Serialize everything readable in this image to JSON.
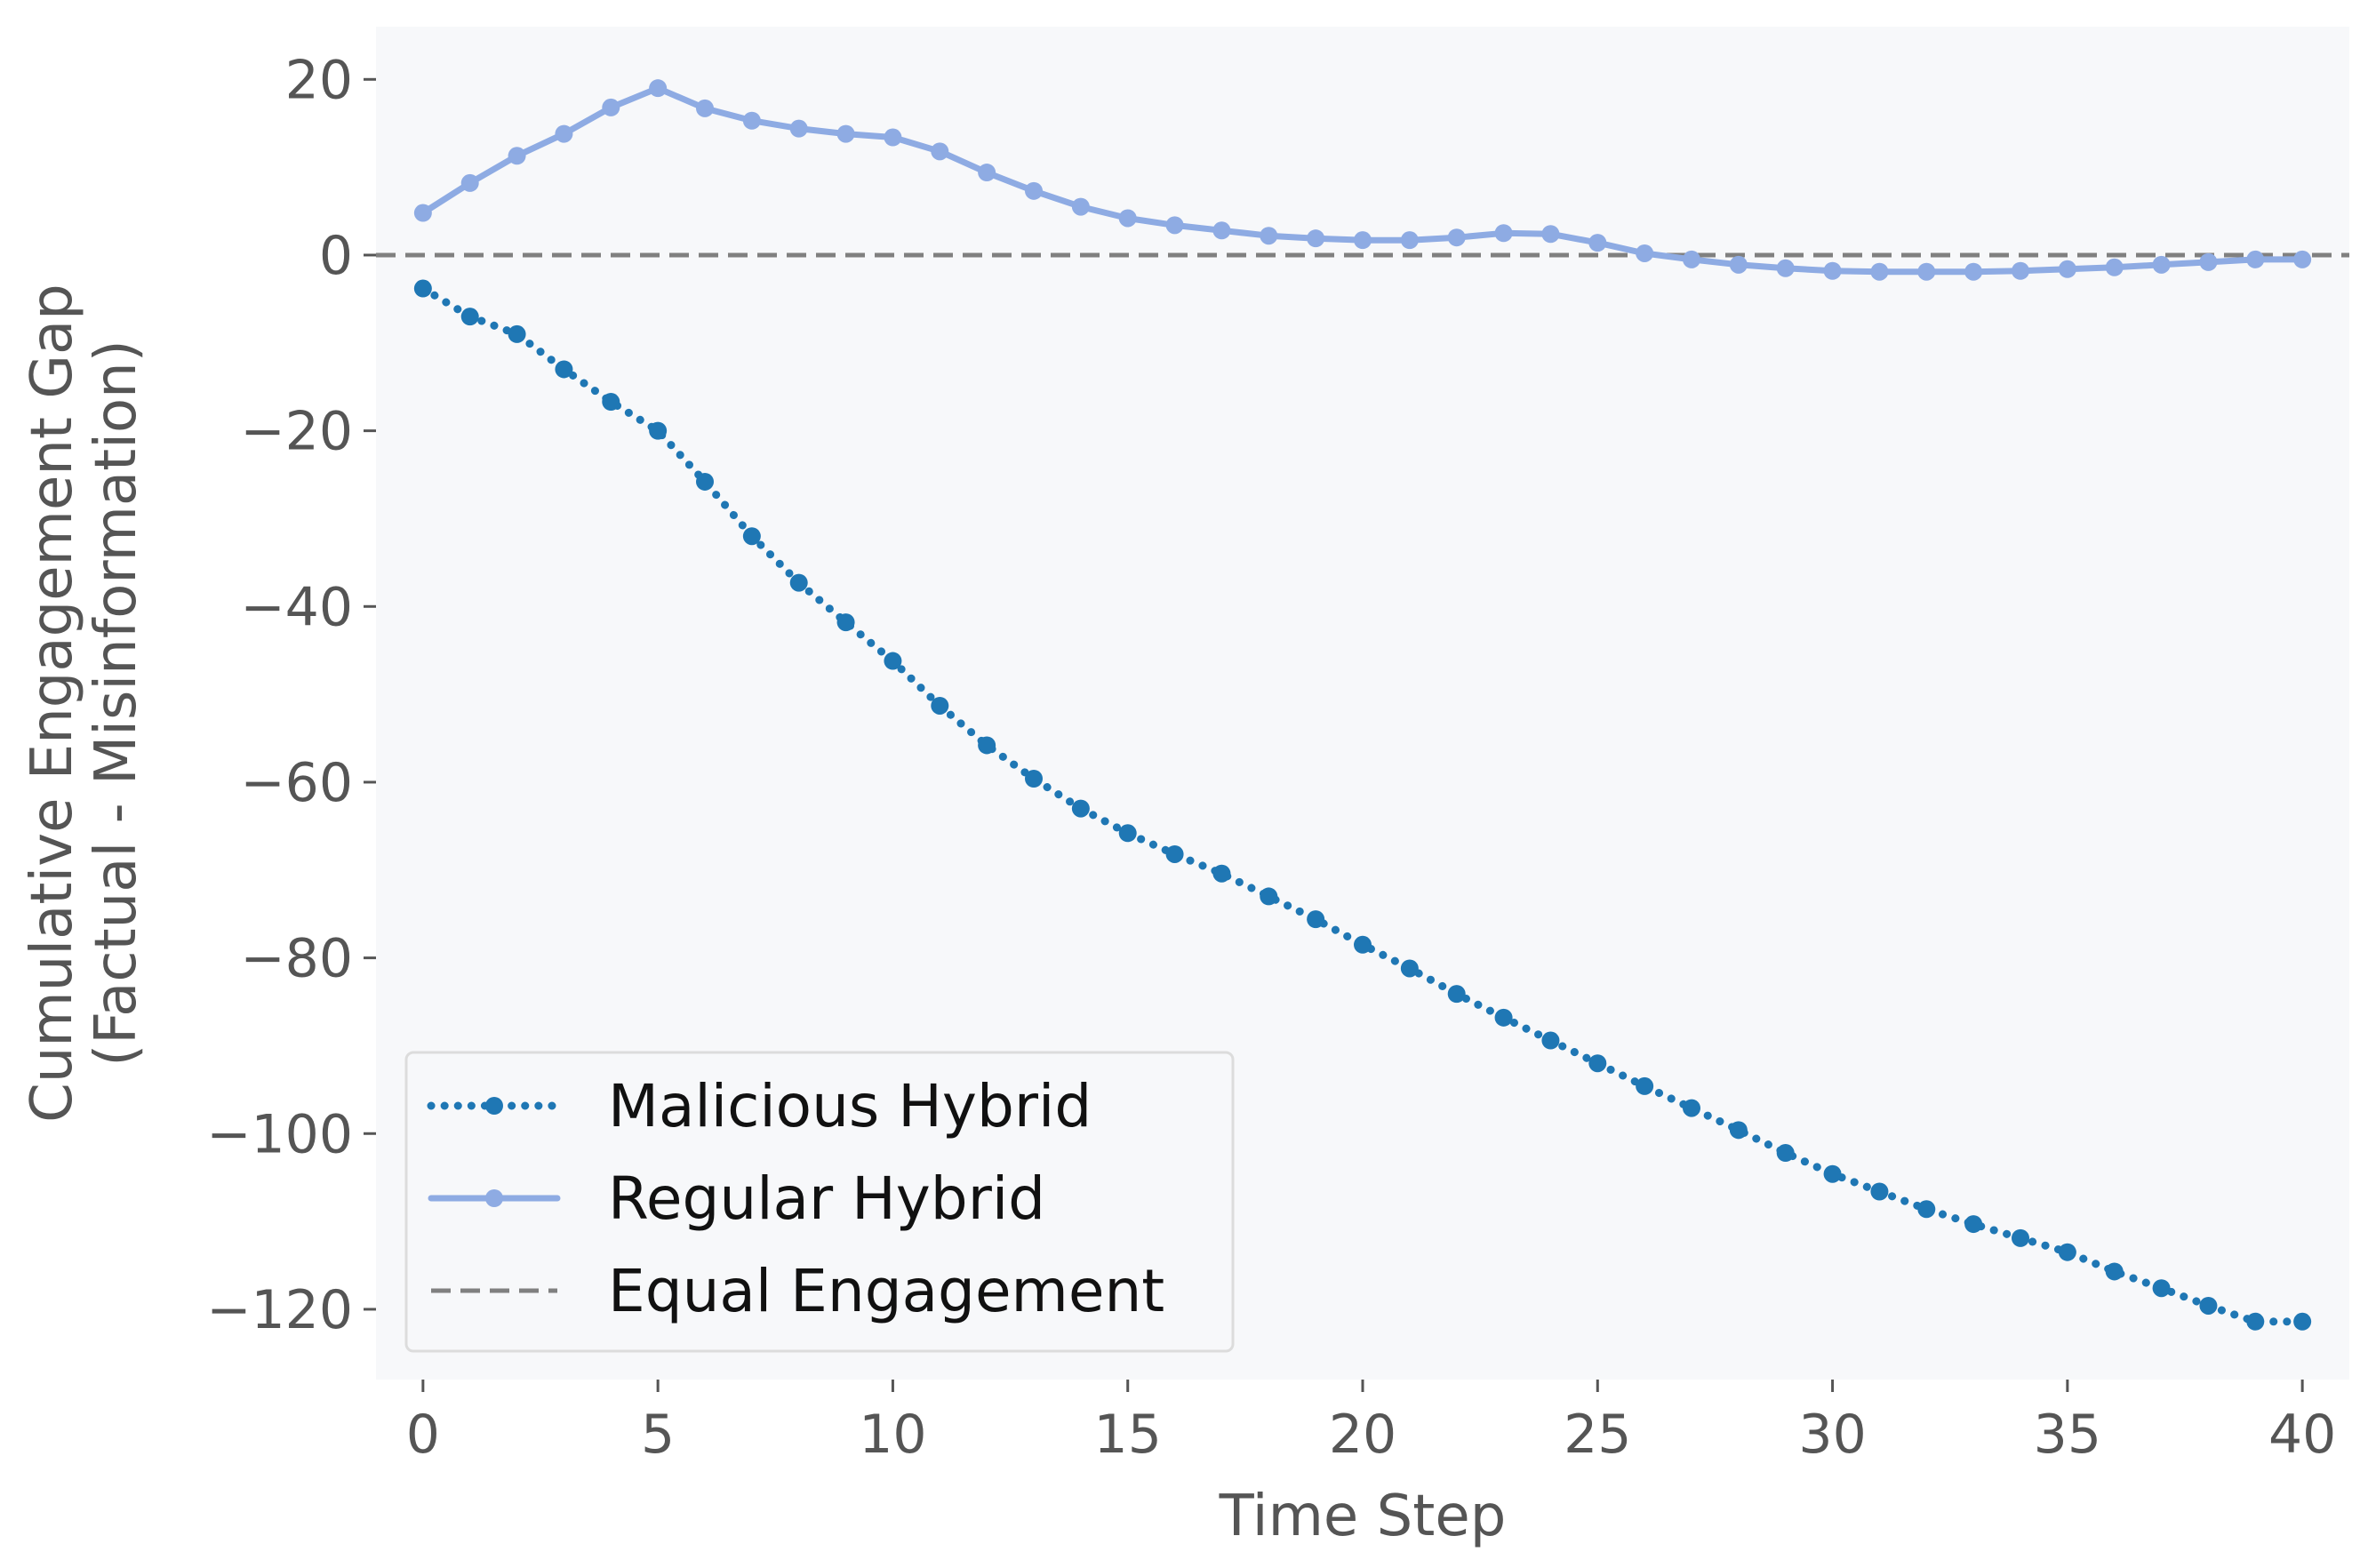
{
  "chart_data": {
    "type": "line",
    "title": "",
    "xlabel": "Time Step",
    "ylabel_line1": "Cumulative Engagement Gap",
    "ylabel_line2": "(Factual - Misinformation)",
    "xlim": [
      -1,
      41
    ],
    "ylim": [
      -128,
      26
    ],
    "x_ticks": [
      0,
      5,
      10,
      15,
      20,
      25,
      30,
      35,
      40
    ],
    "x_tick_labels": [
      "0",
      "5",
      "10",
      "15",
      "20",
      "25",
      "30",
      "35",
      "40"
    ],
    "y_ticks": [
      20,
      0,
      -20,
      -40,
      -60,
      -80,
      -100,
      -120
    ],
    "y_tick_labels": [
      "20",
      "0",
      "−20",
      "−40",
      "−60",
      "−80",
      "−100",
      "−120"
    ],
    "grid": false,
    "legend_position": "lower-left",
    "background_color": "#f7f8fa",
    "x": [
      0,
      1,
      2,
      3,
      4,
      5,
      6,
      7,
      8,
      9,
      10,
      11,
      12,
      13,
      14,
      15,
      16,
      17,
      18,
      19,
      20,
      21,
      22,
      23,
      24,
      25,
      26,
      27,
      28,
      29,
      30,
      31,
      32,
      33,
      34,
      35,
      36,
      37,
      38,
      39,
      40
    ],
    "series": [
      {
        "name": "Malicious Hybrid",
        "style": "dotted",
        "color": "#1f77b4",
        "values": [
          -3.8,
          -7,
          -9,
          -13,
          -16.7,
          -20,
          -25.8,
          -32,
          -37.3,
          -41.8,
          -46.2,
          -51.3,
          -55.8,
          -59.6,
          -63,
          -65.8,
          -68.2,
          -70.4,
          -73,
          -75.6,
          -78.5,
          -81.2,
          -84.1,
          -86.8,
          -89.4,
          -92,
          -94.6,
          -97.1,
          -99.6,
          -102.2,
          -104.6,
          -106.6,
          -108.6,
          -110.3,
          -111.9,
          -113.5,
          -115.7,
          -117.6,
          -119.6,
          -121.4,
          -121.4
        ]
      },
      {
        "name": "Regular Hybrid",
        "style": "solid",
        "color": "#8eabe3",
        "values": [
          4.8,
          8.2,
          11.3,
          13.8,
          16.8,
          19,
          16.7,
          15.3,
          14.4,
          13.8,
          13.4,
          11.8,
          9.4,
          7.3,
          5.5,
          4.2,
          3.4,
          2.8,
          2.2,
          1.9,
          1.7,
          1.7,
          2,
          2.5,
          2.4,
          1.4,
          0.2,
          -0.5,
          -1.1,
          -1.5,
          -1.8,
          -1.9,
          -1.9,
          -1.9,
          -1.8,
          -1.6,
          -1.4,
          -1.1,
          -0.8,
          -0.5,
          -0.5
        ]
      }
    ],
    "reference_line": {
      "name": "Equal Engagement",
      "y": 0,
      "style": "dashed",
      "color": "#808080"
    }
  }
}
